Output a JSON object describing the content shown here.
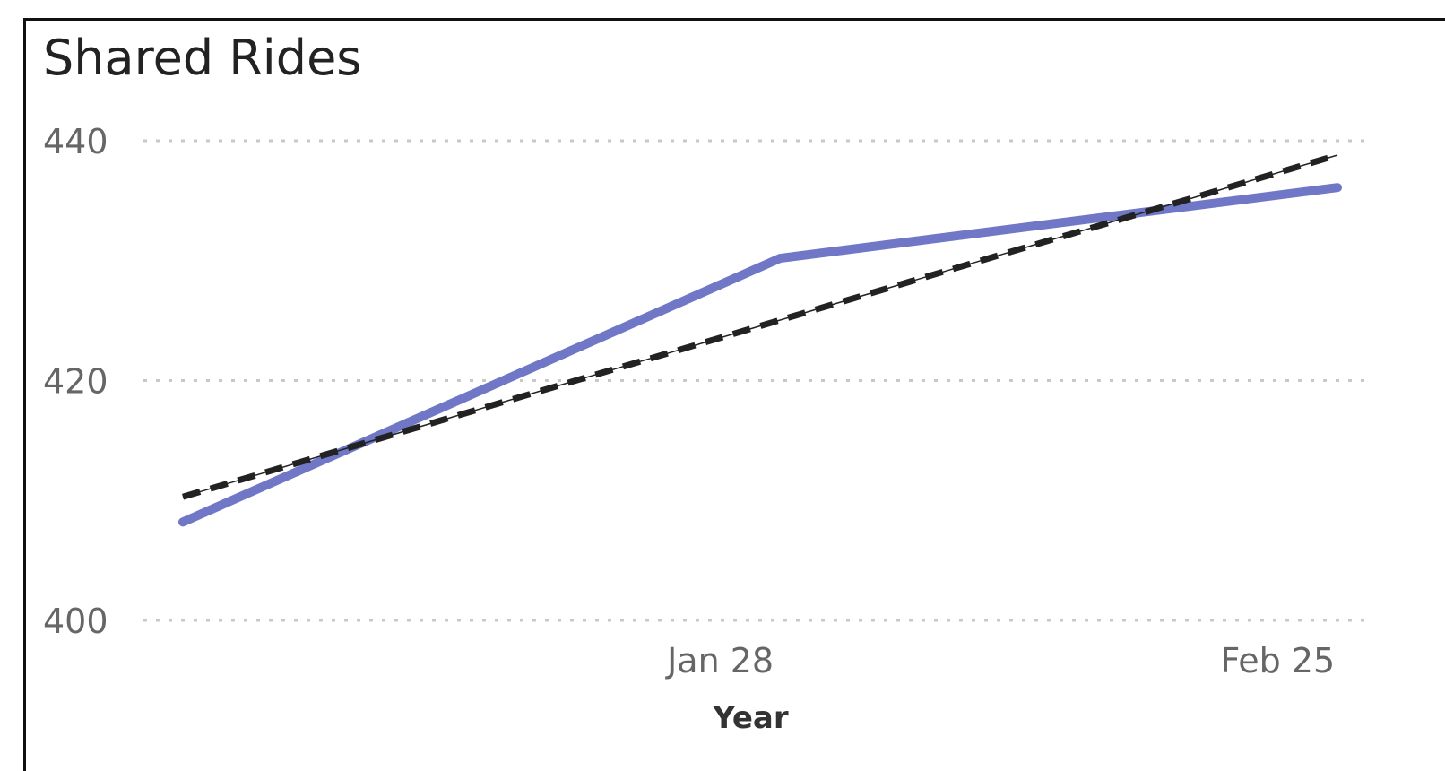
{
  "title": "Shared Rides",
  "chart_data": {
    "type": "line",
    "title": "Shared Rides",
    "xlabel": "Year",
    "ylabel": "",
    "x_ticks": [
      "Jan 28",
      "Feb 25"
    ],
    "y_ticks": [
      400,
      420,
      440
    ],
    "ylim": [
      400,
      440
    ],
    "grid": true,
    "series": [
      {
        "color": "#7077C7",
        "style": "solid",
        "points": [
          {
            "x": "Jan 1",
            "y": 408.2
          },
          {
            "x": "Jan 31",
            "y": 430.2
          },
          {
            "x": "Feb 28",
            "y": 436.1
          }
        ]
      },
      {
        "color": "#222222",
        "style": "dashed",
        "trend_line": true,
        "points": [
          {
            "x": "Jan 1",
            "y": 410.3
          },
          {
            "x": "Feb 28",
            "y": 438.8
          }
        ]
      }
    ]
  }
}
